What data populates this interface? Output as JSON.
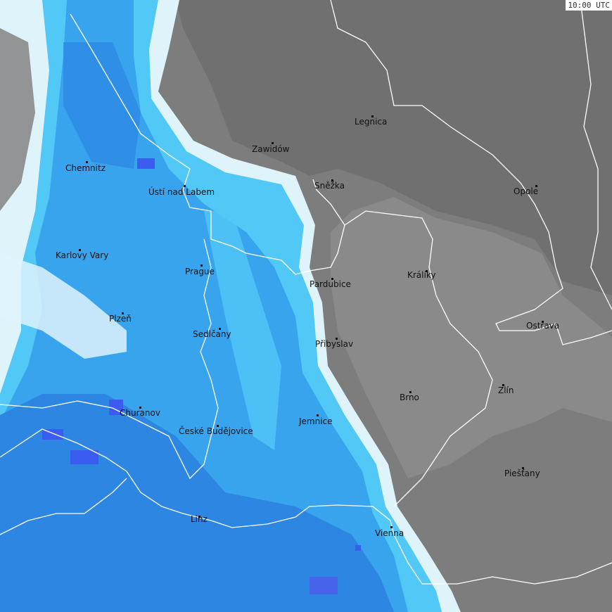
{
  "timestamp": "10:00 UTC",
  "colors": {
    "land": "#7d7d7d",
    "land_dark": "#6f6f6f",
    "land_light": "#8c8c8c",
    "precip_edge": "#dff3fb",
    "precip_light": "#52c8f6",
    "precip_mid": "#38a4ee",
    "precip_dark": "#2c86e2",
    "precip_heavy": "#3b5cf0",
    "border": "#ffffff"
  },
  "cities": [
    {
      "name": "Legnica"
    },
    {
      "name": "Zawidów"
    },
    {
      "name": "Chemnitz"
    },
    {
      "name": "Ústí nad Labem"
    },
    {
      "name": "Sněžka"
    },
    {
      "name": "Opole"
    },
    {
      "name": "Karlovy Vary"
    },
    {
      "name": "Prague"
    },
    {
      "name": "Králíky"
    },
    {
      "name": "Pardubice"
    },
    {
      "name": "Plzeň"
    },
    {
      "name": "Ostrava"
    },
    {
      "name": "Sedlčany"
    },
    {
      "name": "Přibyslav"
    },
    {
      "name": "Zlín"
    },
    {
      "name": "Brno"
    },
    {
      "name": "Churanov"
    },
    {
      "name": "České Budějovice"
    },
    {
      "name": "Jemnice"
    },
    {
      "name": "Piešťany"
    },
    {
      "name": "Linz"
    },
    {
      "name": "Vienna"
    }
  ]
}
